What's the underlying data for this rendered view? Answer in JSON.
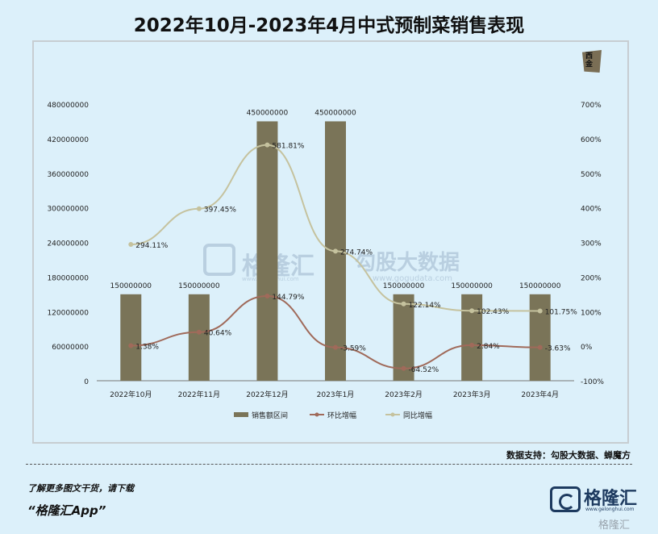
{
  "title": "2022年10月-2023年4月中式预制菜销售表现",
  "chart_data": {
    "type": "bar",
    "categories": [
      "2022年10月",
      "2022年11月",
      "2022年12月",
      "2023年1月",
      "2023年2月",
      "2023年3月",
      "2023年4月"
    ],
    "series": [
      {
        "name": "销售额区间",
        "type": "bar",
        "axis": "left",
        "values": [
          150000000,
          150000000,
          450000000,
          450000000,
          150000000,
          150000000,
          150000000
        ],
        "labels": [
          "150000000",
          "150000000",
          "450000000",
          "450000000",
          "150000000",
          "150000000",
          "150000000"
        ],
        "color": "#7a7458"
      },
      {
        "name": "环比增幅",
        "type": "line",
        "axis": "right",
        "values": [
          1.38,
          40.64,
          144.79,
          -3.59,
          -64.52,
          2.84,
          -3.63
        ],
        "labels": [
          "1.38%",
          "40.64%",
          "144.79%",
          "-3.59%",
          "-64.52%",
          "2.84%",
          "-3.63%"
        ],
        "color": "#a06a5a"
      },
      {
        "name": "同比增幅",
        "type": "line",
        "axis": "right",
        "values": [
          294.11,
          397.45,
          581.81,
          274.74,
          122.14,
          102.43,
          101.75
        ],
        "labels": [
          "294.11%",
          "397.45%",
          "581.81%",
          "274.74%",
          "122.14%",
          "102.43%",
          "101.75%"
        ],
        "color": "#c5c29e"
      }
    ],
    "left_axis": {
      "ylim": [
        0,
        480000000
      ],
      "ticks": [
        "0",
        "60000000",
        "120000000",
        "180000000",
        "240000000",
        "300000000",
        "360000000",
        "420000000",
        "480000000"
      ]
    },
    "right_axis": {
      "ylim": [
        -100,
        700
      ],
      "ticks": [
        "-100%",
        "0%",
        "100%",
        "200%",
        "300%",
        "400%",
        "500%",
        "600%",
        "700%"
      ]
    },
    "legend_position": "bottom",
    "grid": false
  },
  "source": "数据支持：勾股大数据、蝉魔方",
  "watermark": {
    "brand": "格隆汇",
    "brand_url": "www.gelonghui.com",
    "partner": "勾股大数据",
    "partner_url": "www.gogudata.com"
  },
  "corner_icon_text": "西\n金",
  "footer": {
    "note": "了解更多图文干货，请下载",
    "app": "“格隆汇App”"
  },
  "logo": {
    "name": "格隆汇",
    "url": "www.gelonghui.com"
  },
  "corner_watermark": "格隆汇"
}
